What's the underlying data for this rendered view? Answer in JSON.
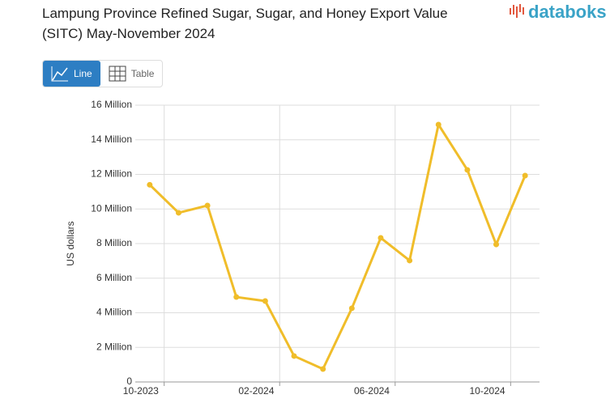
{
  "chart_data": {
    "type": "line",
    "title": "Lampung Province Refined Sugar, Sugar, and Honey Export Value (SITC) May-November 2024",
    "brand": "databoks",
    "view_buttons": [
      "Line",
      "Table"
    ],
    "y_label": "US dollars",
    "categories": [
      "10-2023",
      null,
      null,
      null,
      "02-2024",
      null,
      null,
      null,
      "06-2024",
      null,
      null,
      null,
      "10-2024",
      null
    ],
    "series": [
      {
        "name": "US dollars",
        "color": "#f0bd2a",
        "values": [
          11400000,
          9780000,
          10200000,
          4910000,
          4680000,
          1500000,
          750000,
          4260000,
          8330000,
          7020000,
          14880000,
          12260000,
          7950000,
          11930000
        ]
      }
    ],
    "ylim": [
      0,
      16000000
    ],
    "yticks": [
      0,
      {
        "value": 2000000,
        "label": "2 Million"
      },
      {
        "value": 4000000,
        "label": "4 Million"
      },
      {
        "value": 6000000,
        "label": "6 Million"
      },
      {
        "value": 8000000,
        "label": "8 Million"
      },
      {
        "value": 10000000,
        "label": "10 Million"
      },
      {
        "value": 12000000,
        "label": "12 Million"
      },
      {
        "value": 14000000,
        "label": "14 Million"
      },
      {
        "value": 16000000,
        "label": "16 Million"
      }
    ],
    "grid": true
  }
}
